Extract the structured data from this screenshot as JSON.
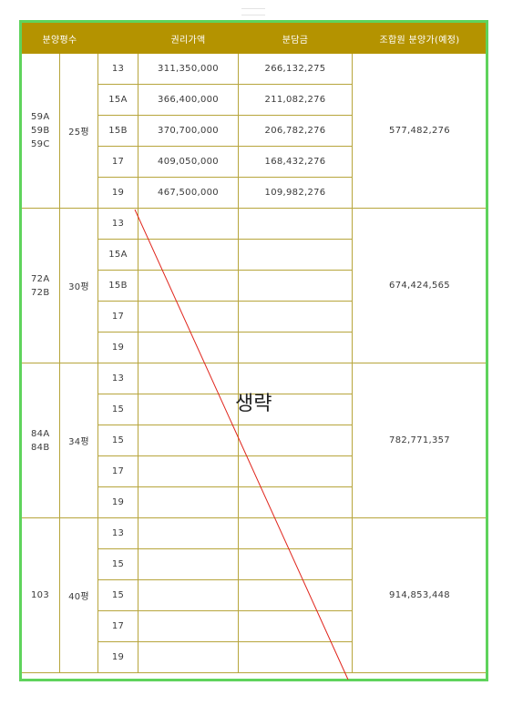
{
  "header": [
    "분양평수",
    "",
    "권리가액",
    "분담금",
    "조합원 분양가(예정)"
  ],
  "groups": [
    {
      "types": "59A\n59B\n59C",
      "size": "25평",
      "price": "577,482,276",
      "rows": [
        {
          "floor": "13",
          "right": "311,350,000",
          "share": "266,132,275"
        },
        {
          "floor": "15A",
          "right": "366,400,000",
          "share": "211,082,276"
        },
        {
          "floor": "15B",
          "right": "370,700,000",
          "share": "206,782,276"
        },
        {
          "floor": "17",
          "right": "409,050,000",
          "share": "168,432,276"
        },
        {
          "floor": "19",
          "right": "467,500,000",
          "share": "109,982,276"
        }
      ]
    },
    {
      "types": "72A\n72B",
      "size": "30평",
      "price": "674,424,565",
      "rows": [
        {
          "floor": "13",
          "right": "",
          "share": ""
        },
        {
          "floor": "15A",
          "right": "",
          "share": ""
        },
        {
          "floor": "15B",
          "right": "",
          "share": ""
        },
        {
          "floor": "17",
          "right": "",
          "share": ""
        },
        {
          "floor": "19",
          "right": "",
          "share": ""
        }
      ]
    },
    {
      "types": "84A\n84B",
      "size": "34평",
      "price": "782,771,357",
      "rows": [
        {
          "floor": "13",
          "right": "",
          "share": ""
        },
        {
          "floor": "15",
          "right": "",
          "share": ""
        },
        {
          "floor": "15",
          "right": "",
          "share": ""
        },
        {
          "floor": "17",
          "right": "",
          "share": ""
        },
        {
          "floor": "19",
          "right": "",
          "share": ""
        }
      ]
    },
    {
      "types": "103",
      "size": "40평",
      "price": "914,853,448",
      "rows": [
        {
          "floor": "13",
          "right": "",
          "share": ""
        },
        {
          "floor": "15",
          "right": "",
          "share": ""
        },
        {
          "floor": "15",
          "right": "",
          "share": ""
        },
        {
          "floor": "17",
          "right": "",
          "share": ""
        },
        {
          "floor": "19",
          "right": "",
          "share": ""
        }
      ]
    }
  ],
  "omitted_note": "생략",
  "colors": {
    "header_bg": "#b49300",
    "border": "#b7a53c",
    "frame": "#5fd35c",
    "slash": "#e0241b"
  }
}
